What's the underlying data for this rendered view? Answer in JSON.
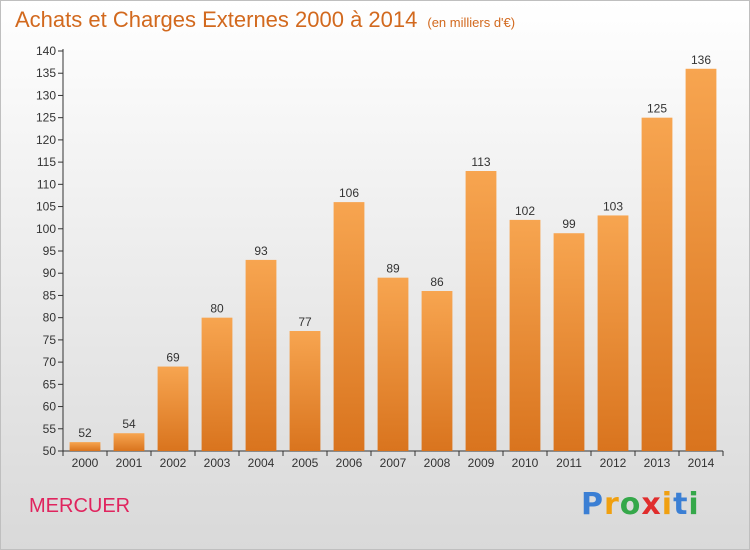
{
  "header": {
    "title": "Achats et Charges Externes 2000 à 2014",
    "unit": "(en milliers d'€)"
  },
  "footer": {
    "town": "MERCUER",
    "logo_letters": [
      "P",
      "r",
      "o",
      "x",
      "i",
      "t",
      "i"
    ]
  },
  "colors": {
    "bar_top": "#f7a550",
    "bar_bottom": "#d9741e",
    "title": "#d2691e",
    "town": "#e0245e"
  },
  "chart_data": {
    "type": "bar",
    "title": "Achats et Charges Externes 2000 à 2014",
    "subtitle": "(en milliers d'€)",
    "categories": [
      "2000",
      "2001",
      "2002",
      "2003",
      "2004",
      "2005",
      "2006",
      "2007",
      "2008",
      "2009",
      "2010",
      "2011",
      "2012",
      "2013",
      "2014"
    ],
    "values": [
      52,
      54,
      69,
      80,
      93,
      77,
      106,
      89,
      86,
      113,
      102,
      99,
      103,
      125,
      136
    ],
    "ylim": [
      50,
      140
    ],
    "yticks": [
      50,
      55,
      60,
      65,
      70,
      75,
      80,
      85,
      90,
      95,
      100,
      105,
      110,
      115,
      120,
      125,
      130,
      135,
      140
    ],
    "grid": false,
    "legend": "none"
  }
}
